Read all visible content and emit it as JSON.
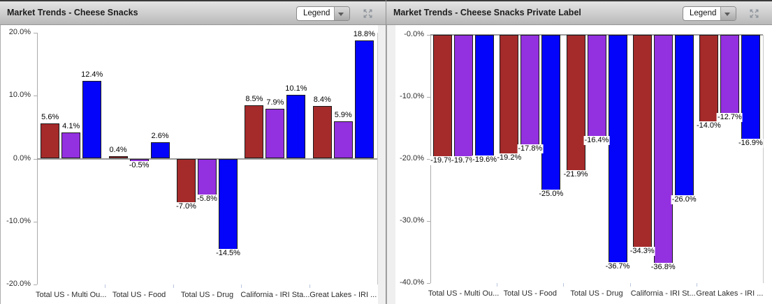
{
  "panels": [
    {
      "title": "Market Trends - Cheese Snacks",
      "legend_button": "Legend"
    },
    {
      "title": "Market Trends - Cheese Snacks Private Label",
      "legend_button": "Legend"
    }
  ],
  "colors": {
    "series_red": "#A52A2A",
    "series_purple": "#9330E0",
    "series_blue": "#0404FA",
    "bar_border": "#1A1A1A",
    "axis_line": "#ABABAB",
    "zero_line": "#9B9B9B"
  },
  "chart_data": [
    {
      "type": "bar",
      "title": "Market Trends - Cheese Snacks",
      "categories": [
        "Total US - Multi Ou...",
        "Total US - Food",
        "Total US - Drug",
        "California - IRI Sta...",
        "Great Lakes - IRI ..."
      ],
      "series": [
        {
          "name": "series-red",
          "color": "#A52A2A",
          "values": [
            5.6,
            0.4,
            -7.0,
            8.5,
            8.4
          ],
          "labels": [
            "5.6%",
            "0.4%",
            "-7.0%",
            "8.5%",
            "8.4%"
          ]
        },
        {
          "name": "series-purple",
          "color": "#9330E0",
          "values": [
            4.1,
            -0.5,
            -5.8,
            7.9,
            5.9
          ],
          "labels": [
            "4.1%",
            "-0.5%",
            "-5.8%",
            "7.9%",
            "5.9%"
          ]
        },
        {
          "name": "series-blue",
          "color": "#0404FA",
          "values": [
            12.4,
            2.6,
            -14.5,
            10.1,
            18.8
          ],
          "labels": [
            "12.4%",
            "2.6%",
            "-14.5%",
            "10.1%",
            "18.8%"
          ]
        }
      ],
      "ylim": [
        -20,
        20
      ],
      "yticks": [
        {
          "value": 20,
          "label": "20.0%"
        },
        {
          "value": 10,
          "label": "10.0%"
        },
        {
          "value": 0,
          "label": "0.0%"
        },
        {
          "value": -10,
          "label": "-10.0%"
        },
        {
          "value": -20,
          "label": "-20.0%"
        }
      ],
      "grid": false,
      "legend": "collapsed"
    },
    {
      "type": "bar",
      "title": "Market Trends - Cheese Snacks Private Label",
      "categories": [
        "Total US - Multi Ou...",
        "Total US - Food",
        "Total US - Drug",
        "California - IRI St...",
        "Great Lakes - IRI ..."
      ],
      "series": [
        {
          "name": "series-red",
          "color": "#A52A2A",
          "values": [
            -19.7,
            -19.2,
            -21.9,
            -34.3,
            -14.0
          ],
          "labels": [
            "-19.7%",
            "-19.2%",
            "-21.9%",
            "-34.3%",
            "-14.0%"
          ]
        },
        {
          "name": "series-purple",
          "color": "#9330E0",
          "values": [
            -19.7,
            -17.8,
            -16.4,
            -36.8,
            -12.7
          ],
          "labels": [
            "-19.7%",
            "-17.8%",
            "-16.4%",
            "-36.8%",
            "-12.7%"
          ]
        },
        {
          "name": "series-blue",
          "color": "#0404FA",
          "values": [
            -19.6,
            -25.0,
            -36.7,
            -26.0,
            -16.9
          ],
          "labels": [
            "-19.6%",
            "-25.0%",
            "-36.7%",
            "-26.0%",
            "-16.9%"
          ]
        }
      ],
      "ylim": [
        -40,
        0
      ],
      "yticks": [
        {
          "value": 0,
          "label": "-0.0%"
        },
        {
          "value": -10,
          "label": "-10.0%"
        },
        {
          "value": -20,
          "label": "-20.0%"
        },
        {
          "value": -30,
          "label": "-30.0%"
        },
        {
          "value": -40,
          "label": "-40.0%"
        }
      ],
      "grid": false,
      "legend": "collapsed"
    }
  ]
}
